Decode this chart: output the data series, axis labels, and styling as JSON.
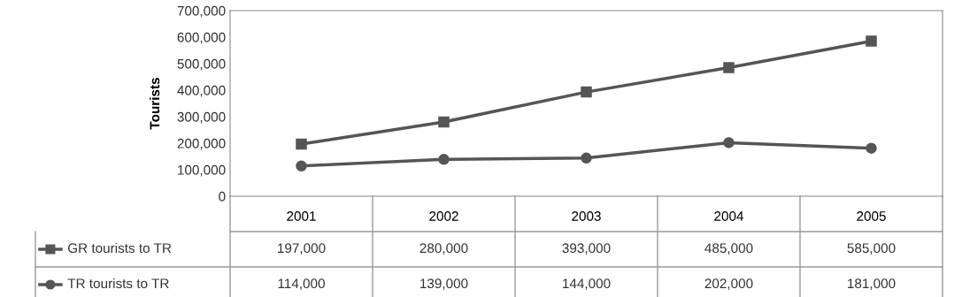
{
  "chart_data": {
    "type": "line",
    "ylabel": "Tourists",
    "categories": [
      "2001",
      "2002",
      "2003",
      "2004",
      "2005"
    ],
    "series": [
      {
        "name": "GR tourists to TR",
        "color": "#555555",
        "marker": "square",
        "values": [
          197000,
          280000,
          393000,
          485000,
          585000
        ],
        "value_labels": [
          "197,000",
          "280,000",
          "393,000",
          "485,000",
          "585,000"
        ]
      },
      {
        "name": "TR tourists to TR",
        "color": "#555555",
        "marker": "circle",
        "values": [
          114000,
          139000,
          144000,
          202000,
          181000
        ],
        "value_labels": [
          "114,000",
          "139,000",
          "144,000",
          "202,000",
          "181,000"
        ]
      }
    ],
    "ylim": [
      0,
      700000
    ],
    "yticks": [
      {
        "value": 0,
        "label": "0"
      },
      {
        "value": 100000,
        "label": "100,000"
      },
      {
        "value": 200000,
        "label": "200,000"
      },
      {
        "value": 300000,
        "label": "300,000"
      },
      {
        "value": 400000,
        "label": "400,000"
      },
      {
        "value": 500000,
        "label": "500,000"
      },
      {
        "value": 600000,
        "label": "600,000"
      },
      {
        "value": 700000,
        "label": "700,000"
      }
    ],
    "grid": false,
    "legend": "bottom",
    "line_style": "solid"
  }
}
